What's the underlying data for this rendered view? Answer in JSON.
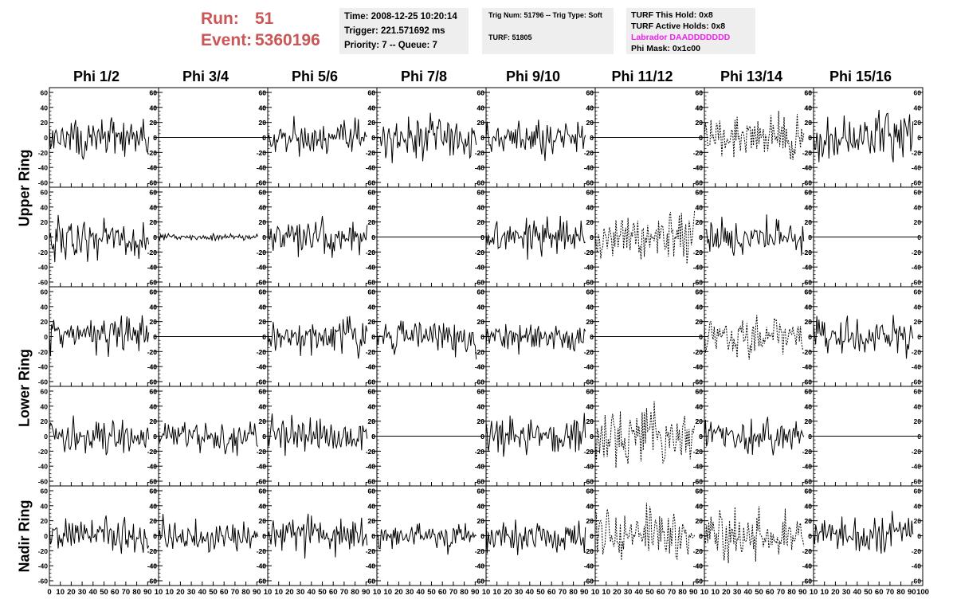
{
  "header": {
    "run_label": "Run:",
    "run_value": "51",
    "event_label": "Event:",
    "event_value": "5360196",
    "time": "Time: 2008-12-25 10:20:14",
    "trigger": "Trigger: 221.571692 ms",
    "priority": "Priority: 7 -- Queue: 7",
    "trig_num": "Trig Num: 51796 -- Trig Type: Soft",
    "turf": "TURF: 51805",
    "turf_hold": "TURF This Hold: 0x8",
    "turf_active": "TURF Active Holds: 0x8",
    "labrador": "Labrador DAADDDDDDD",
    "phi_mask": "Phi Mask: 0x1c00",
    "accent_color": "#cc5555",
    "labrador_color": "#ee22ee"
  },
  "columns": [
    "Phi 1/2",
    "Phi 3/4",
    "Phi 5/6",
    "Phi 7/8",
    "Phi 9/10",
    "Phi 11/12",
    "Phi 13/14",
    "Phi 15/16"
  ],
  "ring_labels": {
    "upper": "Upper Ring",
    "lower": "Lower Ring",
    "nadir": "Nadir Ring"
  },
  "chart_data": {
    "type": "line",
    "title": "",
    "xlabel": "",
    "ylabel": "",
    "xlim": [
      0,
      100
    ],
    "ylim": [
      -60,
      60
    ],
    "y_ticks": [
      -60,
      -40,
      -20,
      0,
      20,
      40,
      60
    ],
    "x_ticks": [
      0,
      10,
      20,
      30,
      40,
      50,
      60,
      70,
      80,
      90,
      100
    ],
    "x_tick_labels_first": [
      "0",
      "10",
      "20",
      "30",
      "40",
      "50",
      "60",
      "70",
      "80",
      "90",
      "10"
    ],
    "x_tick_labels_middle": [
      "10",
      "20",
      "30",
      "40",
      "50",
      "60",
      "70",
      "80",
      "90",
      "10"
    ],
    "x_tick_labels_last": [
      "10",
      "20",
      "30",
      "40",
      "50",
      "60",
      "70",
      "80",
      "90",
      "100"
    ],
    "waveform_length": 92,
    "panels": [
      [
        {
          "style": "solid",
          "amp": 18
        },
        {
          "style": "flat",
          "amp": 0
        },
        {
          "style": "solid",
          "amp": 16
        },
        {
          "style": "solid",
          "amp": 18
        },
        {
          "style": "solid",
          "amp": 17
        },
        {
          "style": "flat",
          "amp": 0
        },
        {
          "style": "dashed",
          "amp": 22
        },
        {
          "style": "solid",
          "amp": 22
        }
      ],
      [
        {
          "style": "solid",
          "amp": 19
        },
        {
          "style": "solid",
          "amp": 3
        },
        {
          "style": "solid",
          "amp": 17
        },
        {
          "style": "flat",
          "amp": 0
        },
        {
          "style": "solid",
          "amp": 18
        },
        {
          "style": "dashed",
          "amp": 20
        },
        {
          "style": "solid",
          "amp": 18
        },
        {
          "style": "flat",
          "amp": 0
        }
      ],
      [
        {
          "style": "solid",
          "amp": 18
        },
        {
          "style": "flat",
          "amp": 0
        },
        {
          "style": "solid",
          "amp": 18
        },
        {
          "style": "solid",
          "amp": 18
        },
        {
          "style": "solid",
          "amp": 16
        },
        {
          "style": "flat",
          "amp": 0
        },
        {
          "style": "dashed",
          "amp": 18
        },
        {
          "style": "solid",
          "amp": 16
        }
      ],
      [
        {
          "style": "solid",
          "amp": 17
        },
        {
          "style": "solid",
          "amp": 15
        },
        {
          "style": "solid",
          "amp": 18
        },
        {
          "style": "flat",
          "amp": 0
        },
        {
          "style": "solid",
          "amp": 18
        },
        {
          "style": "dashed",
          "amp": 24
        },
        {
          "style": "solid",
          "amp": 17
        },
        {
          "style": "flat",
          "amp": 0
        }
      ],
      [
        {
          "style": "solid",
          "amp": 16
        },
        {
          "style": "solid",
          "amp": 15
        },
        {
          "style": "solid",
          "amp": 17
        },
        {
          "style": "solid",
          "amp": 13
        },
        {
          "style": "solid",
          "amp": 16
        },
        {
          "style": "dashed",
          "amp": 24
        },
        {
          "style": "dashed",
          "amp": 22
        },
        {
          "style": "solid",
          "amp": 18
        }
      ]
    ]
  }
}
